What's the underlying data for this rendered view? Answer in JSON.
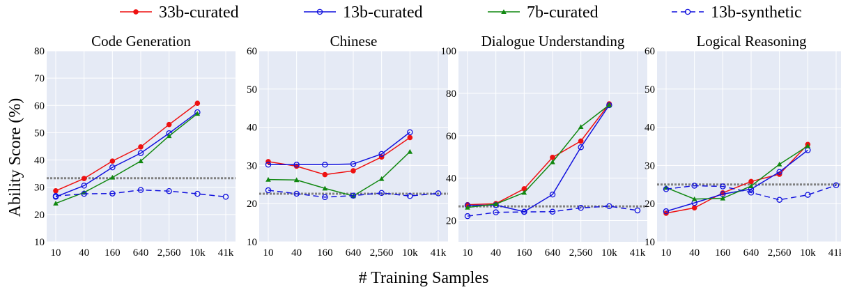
{
  "legend": [
    {
      "name": "33b-curated",
      "color": "#ee1111",
      "marker": "filled-circle",
      "dash": "solid"
    },
    {
      "name": "13b-curated",
      "color": "#1111dd",
      "marker": "open-circle",
      "dash": "solid"
    },
    {
      "name": "7b-curated",
      "color": "#118811",
      "marker": "triangle",
      "dash": "solid"
    },
    {
      "name": "13b-synthetic",
      "color": "#1111dd",
      "marker": "open-circle",
      "dash": "dashed"
    }
  ],
  "xlabel": "# Training Samples",
  "ylabel": "Ability Score (%)",
  "categories": [
    "10",
    "40",
    "160",
    "640",
    "2,560",
    "10k",
    "41k"
  ],
  "chart_data": [
    {
      "type": "line",
      "title": "Code Generation",
      "ylim": [
        10,
        80
      ],
      "yticks": [
        10,
        20,
        30,
        40,
        50,
        60,
        70,
        80
      ],
      "baseline": 33.3,
      "series": [
        {
          "name": "33b-curated",
          "values": [
            28.7,
            33.2,
            39.6,
            44.8,
            53.0,
            60.8,
            null
          ]
        },
        {
          "name": "13b-curated",
          "values": [
            26.5,
            30.6,
            37.3,
            42.5,
            49.8,
            57.5,
            null
          ]
        },
        {
          "name": "7b-curated",
          "values": [
            24.1,
            28.1,
            33.6,
            39.6,
            48.8,
            57.0,
            null
          ]
        },
        {
          "name": "13b-synthetic",
          "values": [
            26.8,
            27.6,
            27.7,
            29.0,
            28.6,
            27.6,
            26.5
          ]
        }
      ]
    },
    {
      "type": "line",
      "title": "Chinese",
      "ylim": [
        10,
        60
      ],
      "yticks": [
        10,
        20,
        30,
        40,
        50,
        60
      ],
      "baseline": 22.6,
      "series": [
        {
          "name": "33b-curated",
          "values": [
            31.0,
            29.8,
            27.6,
            28.6,
            32.2,
            37.3,
            null
          ]
        },
        {
          "name": "13b-curated",
          "values": [
            30.2,
            30.2,
            30.2,
            30.4,
            33.0,
            38.7,
            null
          ]
        },
        {
          "name": "7b-curated",
          "values": [
            26.3,
            26.2,
            24.0,
            22.0,
            26.5,
            33.6,
            null
          ]
        },
        {
          "name": "13b-synthetic",
          "values": [
            23.5,
            22.6,
            21.7,
            22.1,
            22.8,
            22.0,
            22.7
          ]
        }
      ]
    },
    {
      "type": "line",
      "title": "Dialogue Understanding",
      "ylim": [
        10,
        100
      ],
      "yticks": [
        20,
        40,
        60,
        80,
        100
      ],
      "baseline": 26.7,
      "series": [
        {
          "name": "33b-curated",
          "values": [
            27.5,
            28.0,
            35.0,
            49.8,
            57.5,
            75.0,
            null
          ]
        },
        {
          "name": "13b-curated",
          "values": [
            27.2,
            27.3,
            24.2,
            32.3,
            54.6,
            74.4,
            null
          ]
        },
        {
          "name": "7b-curated",
          "values": [
            26.2,
            27.8,
            33.2,
            47.6,
            64.2,
            74.5,
            null
          ]
        },
        {
          "name": "13b-synthetic",
          "values": [
            22.1,
            23.9,
            24.1,
            24.2,
            26.0,
            26.8,
            24.8
          ]
        }
      ]
    },
    {
      "type": "line",
      "title": "Logical Reasoning",
      "ylim": [
        10,
        60
      ],
      "yticks": [
        10,
        20,
        30,
        40,
        50,
        60
      ],
      "baseline": 25.0,
      "series": [
        {
          "name": "33b-curated",
          "values": [
            17.5,
            18.9,
            22.8,
            25.8,
            27.7,
            35.5,
            null
          ]
        },
        {
          "name": "13b-curated",
          "values": [
            18.0,
            20.2,
            22.5,
            23.8,
            28.3,
            34.0,
            null
          ]
        },
        {
          "name": "7b-curated",
          "values": [
            24.2,
            21.2,
            21.4,
            24.6,
            30.3,
            35.1,
            null
          ]
        },
        {
          "name": "13b-synthetic",
          "values": [
            23.8,
            24.7,
            24.5,
            22.9,
            21.0,
            22.3,
            24.8
          ]
        }
      ]
    }
  ]
}
